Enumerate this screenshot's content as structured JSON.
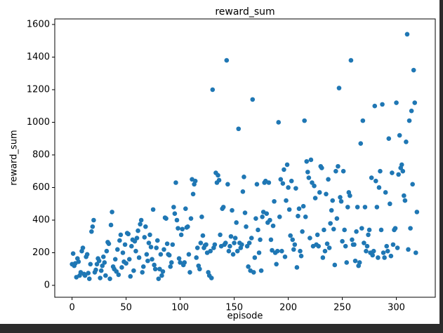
{
  "chart_data": {
    "type": "scatter",
    "title": "reward_sum",
    "x_label": "episode",
    "y_label": "reward_sum",
    "color": "#1f77b4",
    "xlim": [
      -16,
      336
    ],
    "ylim": [
      -73,
      1634
    ],
    "xticks": [
      0,
      50,
      100,
      150,
      200,
      250,
      300
    ],
    "yticks": [
      0,
      200,
      400,
      600,
      800,
      1000,
      1200,
      1400,
      1600
    ],
    "series": [
      {
        "name": "reward_sum",
        "color": "#1f77b4",
        "x": [
          0,
          1,
          2,
          3,
          4,
          5,
          6,
          7,
          8,
          9,
          10,
          11,
          12,
          13,
          14,
          15,
          16,
          17,
          18,
          19,
          20,
          21,
          22,
          23,
          24,
          25,
          26,
          27,
          28,
          29,
          30,
          31,
          32,
          33,
          34,
          35,
          36,
          37,
          38,
          39,
          40,
          41,
          42,
          43,
          44,
          45,
          46,
          47,
          48,
          49,
          50,
          51,
          52,
          53,
          54,
          55,
          56,
          57,
          58,
          59,
          60,
          61,
          62,
          63,
          64,
          65,
          66,
          67,
          68,
          69,
          70,
          71,
          72,
          73,
          74,
          75,
          76,
          77,
          78,
          79,
          80,
          81,
          82,
          83,
          84,
          85,
          86,
          87,
          88,
          89,
          90,
          91,
          92,
          93,
          94,
          95,
          96,
          97,
          98,
          99,
          100,
          101,
          102,
          103,
          104,
          105,
          106,
          107,
          108,
          109,
          110,
          111,
          112,
          113,
          114,
          115,
          116,
          117,
          118,
          119,
          120,
          121,
          122,
          123,
          124,
          125,
          126,
          127,
          128,
          129,
          130,
          131,
          132,
          133,
          134,
          135,
          136,
          137,
          138,
          139,
          140,
          141,
          142,
          143,
          144,
          145,
          146,
          147,
          148,
          149,
          150,
          151,
          152,
          153,
          154,
          155,
          156,
          157,
          158,
          159,
          160,
          161,
          162,
          163,
          164,
          165,
          166,
          167,
          168,
          169,
          170,
          171,
          172,
          173,
          174,
          175,
          176,
          177,
          178,
          179,
          180,
          181,
          182,
          183,
          184,
          185,
          186,
          187,
          188,
          189,
          190,
          191,
          192,
          193,
          194,
          195,
          196,
          197,
          198,
          199,
          200,
          201,
          202,
          203,
          204,
          205,
          206,
          207,
          208,
          209,
          210,
          211,
          212,
          213,
          214,
          215,
          216,
          217,
          218,
          219,
          220,
          221,
          222,
          223,
          224,
          225,
          226,
          227,
          228,
          229,
          230,
          231,
          232,
          233,
          234,
          235,
          236,
          237,
          238,
          239,
          240,
          241,
          242,
          243,
          244,
          245,
          246,
          247,
          248,
          249,
          250,
          251,
          252,
          253,
          254,
          255,
          256,
          257,
          258,
          259,
          260,
          261,
          262,
          263,
          264,
          265,
          266,
          267,
          268,
          269,
          270,
          271,
          272,
          273,
          274,
          275,
          276,
          277,
          278,
          279,
          280,
          281,
          282,
          283,
          284,
          285,
          286,
          287,
          288,
          289,
          290,
          291,
          292,
          293,
          294,
          295,
          296,
          297,
          298,
          299,
          300,
          301,
          302,
          303,
          304,
          305,
          306,
          307,
          308,
          309,
          310,
          311,
          312,
          313,
          314,
          315,
          316,
          317,
          318,
          319
        ],
        "values": [
          130,
          195,
          120,
          135,
          50,
          165,
          145,
          60,
          80,
          210,
          230,
          70,
          60,
          175,
          190,
          75,
          40,
          130,
          330,
          360,
          400,
          80,
          95,
          130,
          165,
          150,
          45,
          90,
          120,
          175,
          140,
          60,
          210,
          265,
          255,
          40,
          370,
          450,
          115,
          100,
          160,
          85,
          220,
          65,
          275,
          310,
          110,
          200,
          145,
          250,
          135,
          320,
          315,
          160,
          55,
          240,
          280,
          90,
          270,
          210,
          290,
          335,
          170,
          375,
          400,
          80,
          115,
          295,
          360,
          190,
          150,
          260,
          310,
          235,
          160,
          465,
          125,
          100,
          230,
          275,
          40,
          100,
          190,
          60,
          85,
          220,
          415,
          410,
          255,
          190,
          185,
          115,
          140,
          250,
          480,
          440,
          630,
          400,
          350,
          165,
          140,
          310,
          345,
          125,
          140,
          470,
          355,
          360,
          190,
          80,
          410,
          650,
          560,
          620,
          640,
          170,
          230,
          120,
          100,
          260,
          420,
          305,
          230,
          245,
          250,
          200,
          80,
          60,
          210,
          45,
          1200,
          230,
          250,
          690,
          630,
          675,
          645,
          310,
          240,
          470,
          480,
          250,
          260,
          1380,
          620,
          210,
          240,
          300,
          460,
          190,
          260,
          290,
          385,
          210,
          960,
          260,
          230,
          250,
          575,
          665,
          445,
          360,
          240,
          115,
          260,
          90,
          290,
          1140,
          80,
          170,
          410,
          620,
          340,
          200,
          280,
          90,
          420,
          450,
          630,
          640,
          440,
          385,
          630,
          400,
          280,
          215,
          365,
          515,
          200,
          130,
          210,
          1000,
          420,
          650,
          210,
          625,
          710,
          175,
          520,
          740,
          600,
          465,
          305,
          640,
          280,
          220,
          250,
          595,
          110,
          425,
          470,
          210,
          180,
          330,
          485,
          1010,
          420,
          760,
          695,
          660,
          290,
          770,
          630,
          240,
          610,
          535,
          250,
          310,
          240,
          570,
          730,
          720,
          170,
          340,
          210,
          560,
          255,
          650,
          230,
          380,
          460,
          520,
          345,
          125,
          700,
          410,
          730,
          1210,
          540,
          515,
          270,
          700,
          340,
          240,
          140,
          480,
          570,
          550,
          1380,
          280,
          250,
          250,
          150,
          330,
          480,
          120,
          140,
          870,
          350,
          1010,
          260,
          480,
          210,
          240,
          310,
          340,
          200,
          660,
          185,
          210,
          1100,
          640,
          480,
          170,
          600,
          700,
          340,
          1110,
          200,
          170,
          570,
          240,
          210,
          900,
          500,
          180,
          690,
          250,
          340,
          350,
          1120,
          230,
          680,
          920,
          720,
          740,
          700,
          550,
          520,
          880,
          1540,
          220,
          1010,
          350,
          1070,
          620,
          1320,
          1120,
          200,
          450
        ]
      }
    ]
  }
}
